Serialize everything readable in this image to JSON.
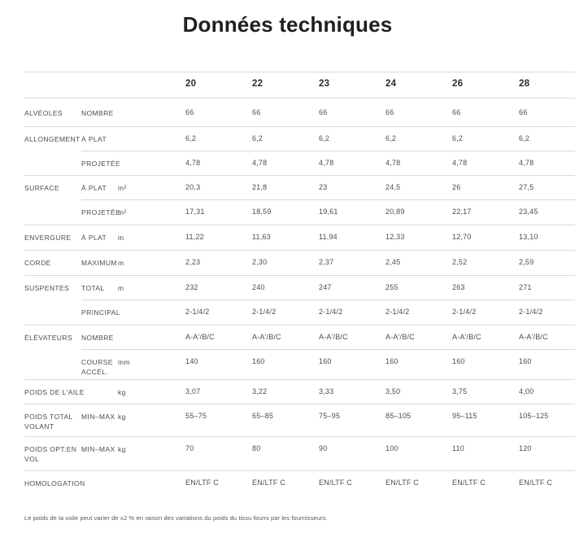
{
  "title": "Données techniques",
  "table": {
    "sizes": [
      "20",
      "22",
      "23",
      "24",
      "26",
      "28"
    ],
    "rows": [
      {
        "group": "ALVÉOLES",
        "sub": "NOMBRE",
        "unit": "",
        "values": [
          "66",
          "66",
          "66",
          "66",
          "66",
          "66"
        ]
      },
      {
        "group": "ALLONGEMENT",
        "sub": "À PLAT",
        "unit": "",
        "values": [
          "6,2",
          "6,2",
          "6,2",
          "6,2",
          "6,2",
          "6,2"
        ]
      },
      {
        "group": "",
        "sub": "PROJETÉE",
        "unit": "",
        "values": [
          "4,78",
          "4,78",
          "4,78",
          "4,78",
          "4,78",
          "4,78"
        ]
      },
      {
        "group": "SURFACE",
        "sub": "À PLAT",
        "unit": "m²",
        "values": [
          "20,3",
          "21,8",
          "23",
          "24,5",
          "26",
          "27,5"
        ]
      },
      {
        "group": "",
        "sub": "PROJETÉE",
        "unit": "m²",
        "values": [
          "17,31",
          "18,59",
          "19,61",
          "20,89",
          "22,17",
          "23,45"
        ]
      },
      {
        "group": "ENVERGURE",
        "sub": "À PLAT",
        "unit": "m",
        "values": [
          "11,22",
          "11,63",
          "11,94",
          "12,33",
          "12,70",
          "13,10"
        ]
      },
      {
        "group": "CORDE",
        "sub": "MAXIMUM",
        "unit": "m",
        "values": [
          "2,23",
          "2,30",
          "2,37",
          "2,45",
          "2,52",
          "2,59"
        ]
      },
      {
        "group": "SUSPENTES",
        "sub": "TOTAL",
        "unit": "m",
        "values": [
          "232",
          "240",
          "247",
          "255",
          "263",
          "271"
        ]
      },
      {
        "group": "",
        "sub": "PRINCIPAL",
        "unit": "",
        "values": [
          "2-1/4/2",
          "2-1/4/2",
          "2-1/4/2",
          "2-1/4/2",
          "2-1/4/2",
          "2-1/4/2"
        ]
      },
      {
        "group": "ÉLÉVATEURS",
        "sub": "NOMBRE",
        "unit": "",
        "values": [
          "A-A'/B/C",
          "A-A'/B/C",
          "A-A'/B/C",
          "A-A'/B/C",
          "A-A'/B/C",
          "A-A'/B/C"
        ]
      },
      {
        "group": "",
        "sub": "COURSE ACCÉL.",
        "unit": "mm",
        "values": [
          "140",
          "160",
          "160",
          "160",
          "160",
          "160"
        ]
      },
      {
        "group": "POIDS DE L'AILE",
        "sub": "",
        "unit": "kg",
        "values": [
          "3,07",
          "3,22",
          "3,33",
          "3,50",
          "3,75",
          "4,00"
        ]
      },
      {
        "group": "POIDS TOTAL VOLANT",
        "sub": "MIN–MAX",
        "unit": "kg",
        "values": [
          "55–75",
          "65–85",
          "75–95",
          "85–105",
          "95–115",
          "105–125"
        ]
      },
      {
        "group": "POIDS OPT.EN VOL",
        "sub": "MIN–MAX",
        "unit": "kg",
        "values": [
          "70",
          "80",
          "90",
          "100",
          "110",
          "120"
        ]
      },
      {
        "group": "HOMOLOGATION",
        "sub": "",
        "unit": "",
        "values": [
          "EN/LTF C",
          "EN/LTF C",
          "EN/LTF C",
          "EN/LTF C",
          "EN/LTF C",
          "EN/LTF C"
        ]
      }
    ]
  },
  "footnote": "Le poids de la voile peut varier de ±2 % en raison des variations du poids du tissu fourni par les fournisseurs.",
  "colors": {
    "title_text": "#1f1f1f",
    "body_text": "#4d4d4d",
    "separator": "#d9d9d9"
  }
}
